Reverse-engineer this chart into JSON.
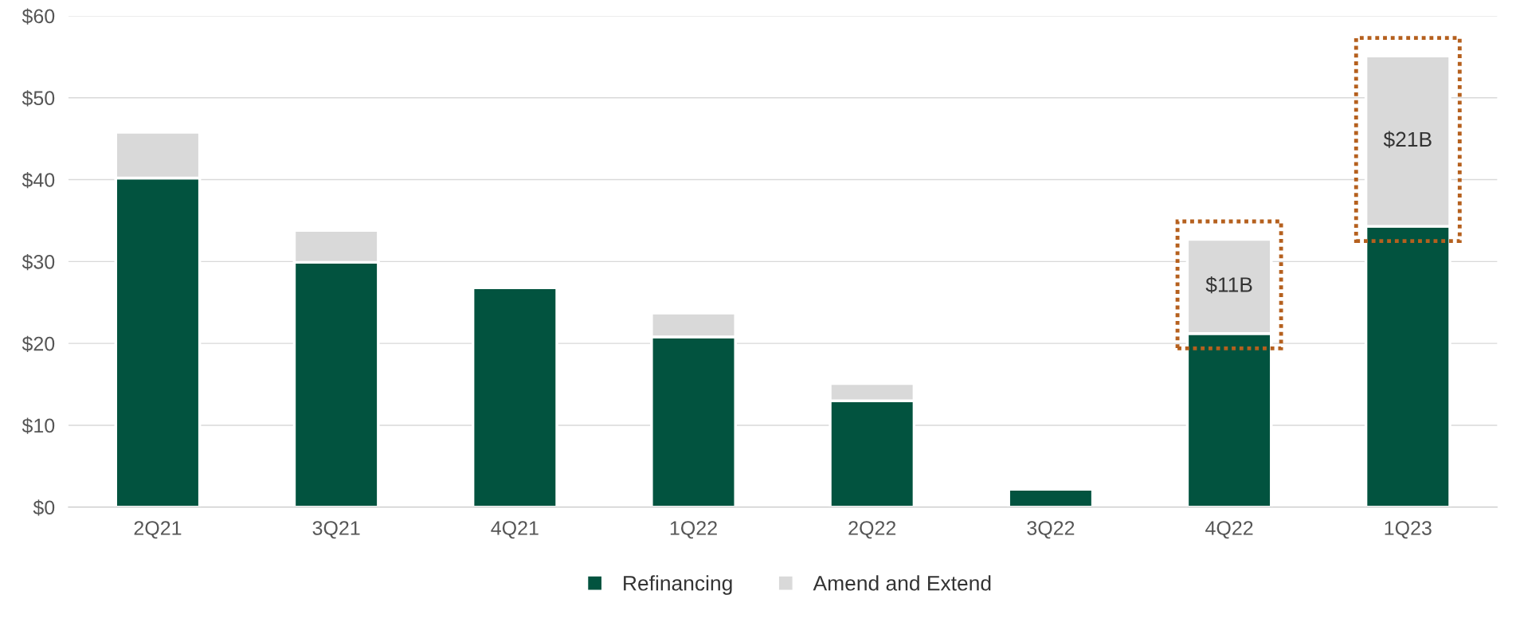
{
  "chart_data": {
    "type": "bar",
    "stacked": true,
    "categories": [
      "2Q21",
      "3Q21",
      "4Q21",
      "1Q22",
      "2Q22",
      "3Q22",
      "4Q22",
      "1Q23"
    ],
    "series": [
      {
        "name": "Refinancing",
        "color": "#02533f",
        "values": [
          40.2,
          29.9,
          26.8,
          20.8,
          13.0,
          2.2,
          21.2,
          34.3
        ]
      },
      {
        "name": "Amend and Extend",
        "color": "#d9d9d9",
        "values": [
          5.6,
          3.9,
          null,
          2.9,
          2.1,
          null,
          11.5,
          20.8
        ],
        "value_labels": [
          null,
          null,
          null,
          null,
          null,
          null,
          "$11B",
          "$21B"
        ]
      }
    ],
    "ylim": [
      0,
      60
    ],
    "yticks": [
      {
        "value": 0,
        "label": "$0"
      },
      {
        "value": 10,
        "label": "$10"
      },
      {
        "value": 20,
        "label": "$20"
      },
      {
        "value": 30,
        "label": "$30"
      },
      {
        "value": 40,
        "label": "$40"
      },
      {
        "value": 50,
        "label": "$50"
      },
      {
        "value": 60,
        "label": "$60"
      }
    ],
    "grid": "y",
    "legend": "bottom"
  }
}
